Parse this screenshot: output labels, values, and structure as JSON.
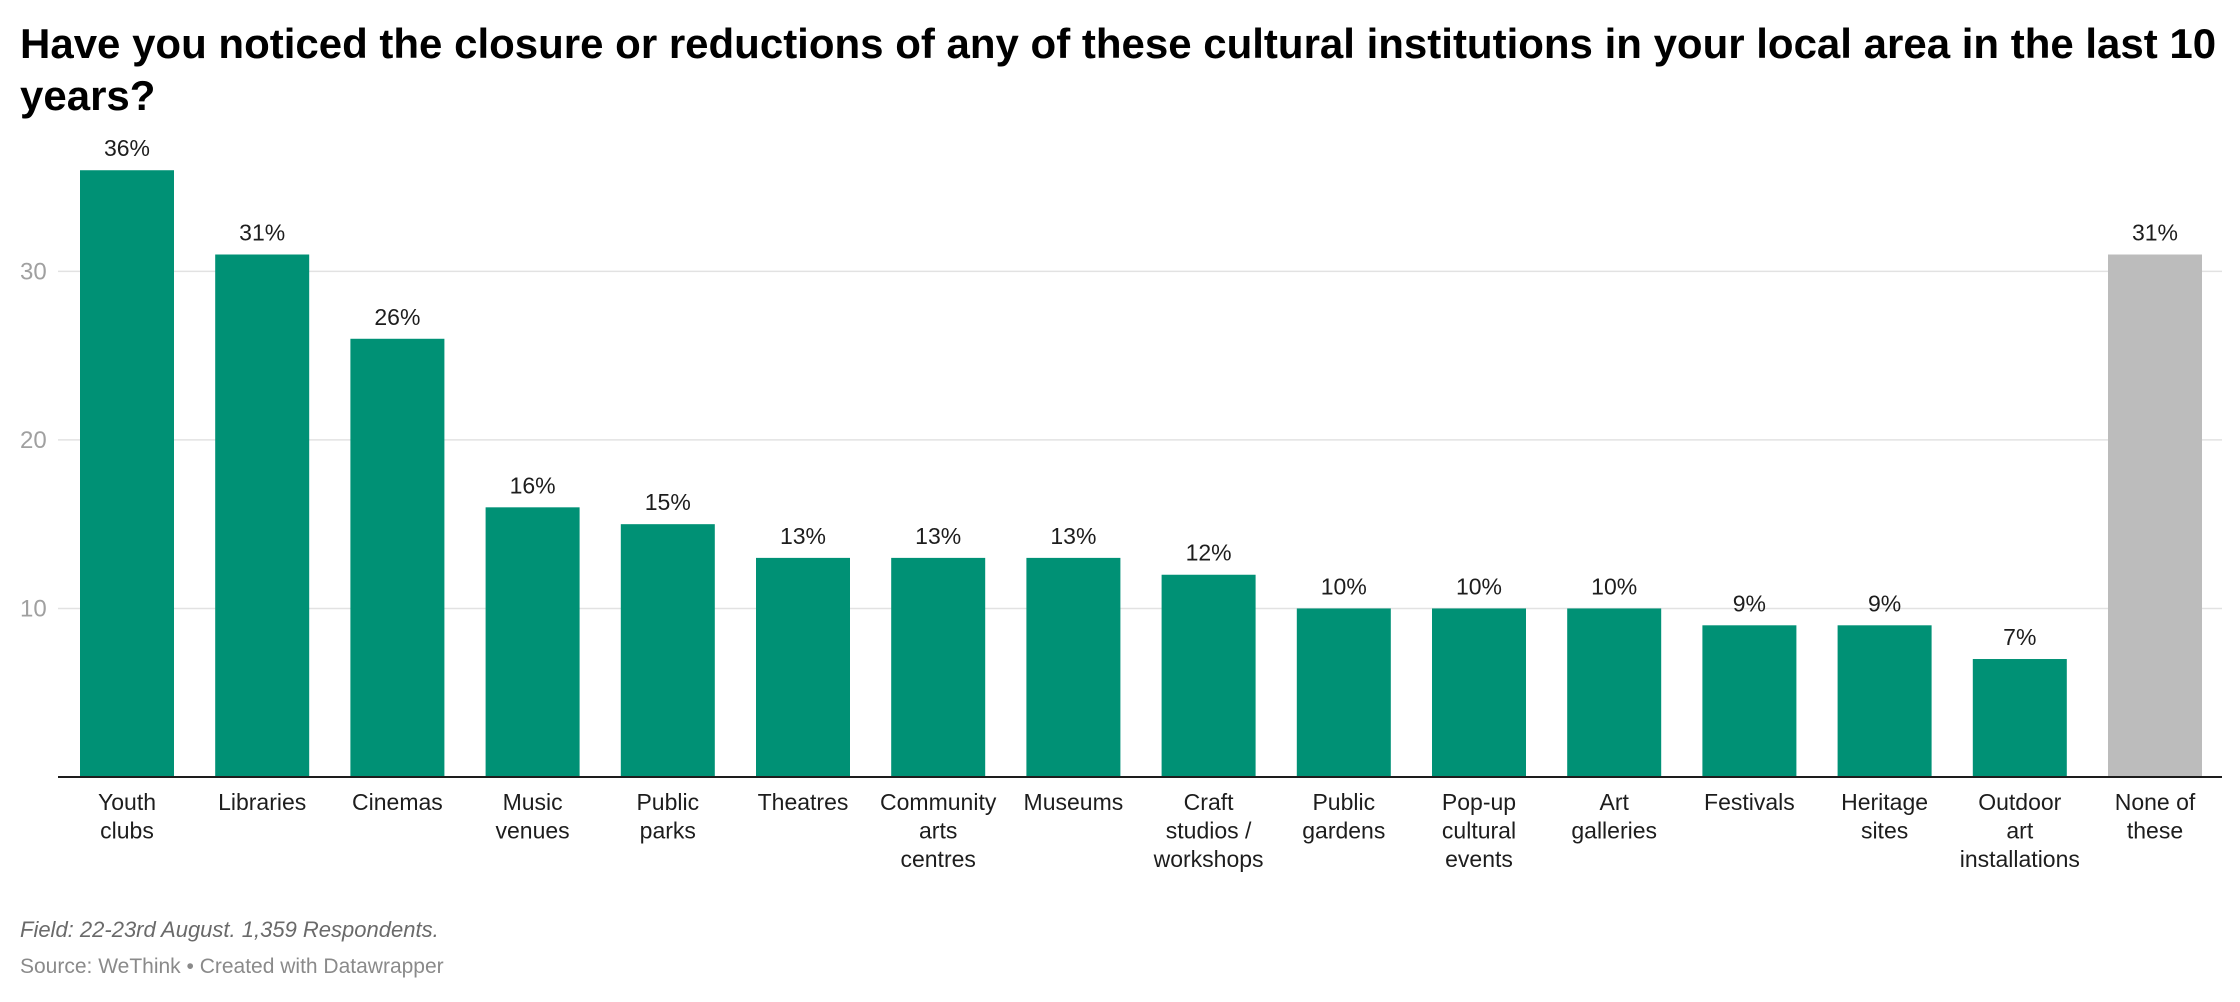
{
  "chart_data": {
    "type": "bar",
    "title": "Have you noticed the closure or reductions of any of these cultural institutions in your local area in the last 10 years?",
    "categories": [
      [
        "Youth",
        "clubs"
      ],
      [
        "Libraries"
      ],
      [
        "Cinemas"
      ],
      [
        "Music",
        "venues"
      ],
      [
        "Public",
        "parks"
      ],
      [
        "Theatres"
      ],
      [
        "Community",
        "arts",
        "centres"
      ],
      [
        "Museums"
      ],
      [
        "Craft",
        "studios /",
        "workshops"
      ],
      [
        "Public",
        "gardens"
      ],
      [
        "Pop-up",
        "cultural",
        "events"
      ],
      [
        "Art",
        "galleries"
      ],
      [
        "Festivals"
      ],
      [
        "Heritage",
        "sites"
      ],
      [
        "Outdoor",
        "art",
        "installations"
      ],
      [
        "None of",
        "these"
      ]
    ],
    "values": [
      36,
      31,
      26,
      16,
      15,
      13,
      13,
      13,
      12,
      10,
      10,
      10,
      9,
      9,
      7,
      31
    ],
    "value_labels": [
      "36%",
      "31%",
      "26%",
      "16%",
      "15%",
      "13%",
      "13%",
      "13%",
      "12%",
      "10%",
      "10%",
      "10%",
      "9%",
      "9%",
      "7%",
      "31%"
    ],
    "bar_colors": [
      "#009175",
      "#009175",
      "#009175",
      "#009175",
      "#009175",
      "#009175",
      "#009175",
      "#009175",
      "#009175",
      "#009175",
      "#009175",
      "#009175",
      "#009175",
      "#009175",
      "#009175",
      "#bcbcbc"
    ],
    "yticks": [
      10,
      20,
      30
    ],
    "ylim": [
      0,
      37.2
    ],
    "grid": true,
    "xlabel": "",
    "ylabel": ""
  },
  "notes": "Field: 22-23rd August. 1,359 Respondents.",
  "source": "Source: WeThink • Created with Datawrapper"
}
